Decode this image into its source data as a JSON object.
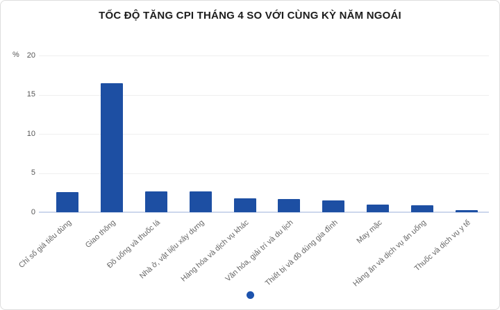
{
  "header": {
    "title": "TỐC ĐỘ TĂNG CPI THÁNG 4 SO VỚI CÙNG KỲ NĂM NGOÁI"
  },
  "chart_data": {
    "type": "bar",
    "title": "TỐC ĐỘ TĂNG CPI THÁNG 4 SO VỚI CÙNG KỲ NĂM NGOÁI",
    "unit_label": "%",
    "categories": [
      "Chỉ số giá tiêu dùng",
      "Giao thông",
      "Đồ uống và thuốc lá",
      "Nhà ở, vật liệu xây dựng",
      "Hàng hóa và dịch vụ khác",
      "Văn hóa, giải trí và du lịch",
      "Thiết bị và đồ dùng gia đình",
      "May mặc",
      "Hàng ăn và dịch vụ ăn uống",
      "Thuốc và dịch vụ y tế"
    ],
    "values": [
      2.6,
      16.5,
      2.7,
      2.7,
      1.8,
      1.7,
      1.5,
      1.0,
      0.9,
      0.3
    ],
    "xlabel": "",
    "ylabel": "%",
    "ylim": [
      0,
      20
    ],
    "yticks": [
      0,
      5,
      10,
      15,
      20
    ],
    "grid": true,
    "legend": "none",
    "bar_color": "#1d4fa3",
    "baseline_color": "#ccd7ec",
    "gridline_color": "#efefef",
    "tick_label_color": "#555555",
    "category_label_color": "#666666"
  },
  "pagination": {
    "active_dot_color": "#1d53ad"
  }
}
